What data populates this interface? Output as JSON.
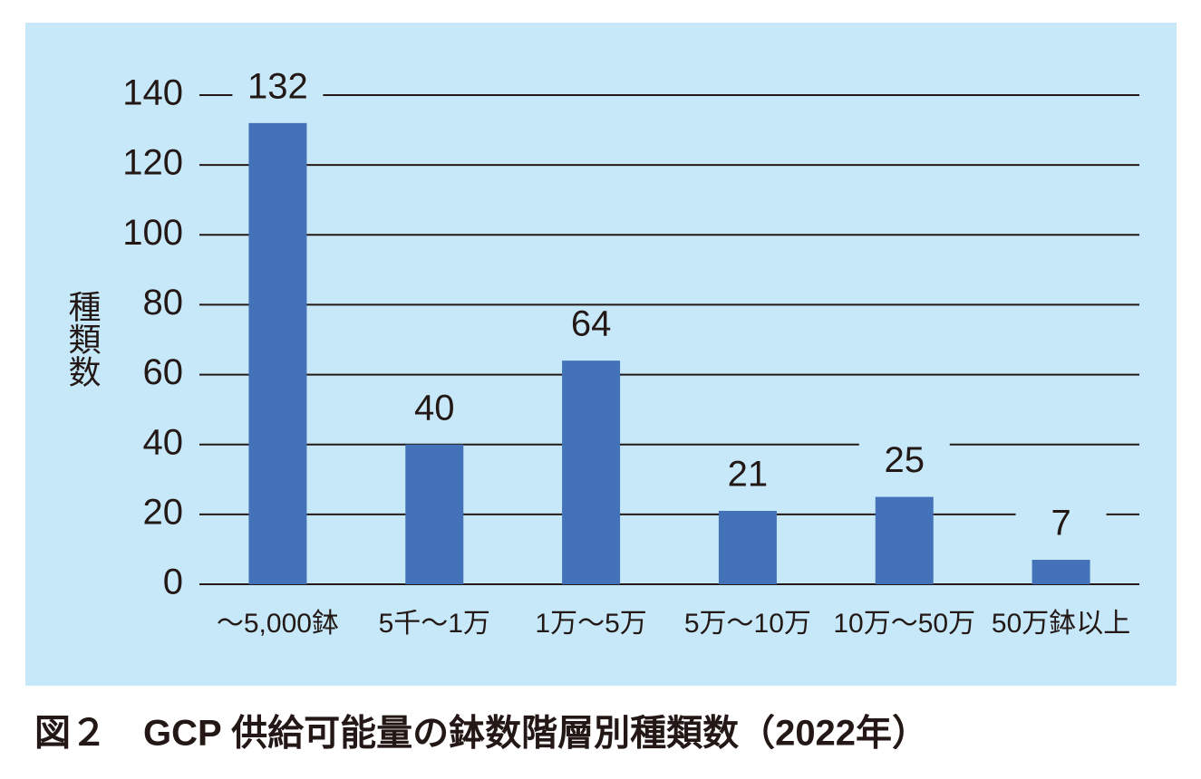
{
  "chart_data": {
    "type": "bar",
    "title": "図２　GCP 供給可能量の鉢数階層別種類数（2022年）",
    "y_label": "種類数",
    "categories": [
      "～5,000鉢",
      "5千～1万",
      "1万～5万",
      "5万～10万",
      "10万～50万",
      "50万鉢以上"
    ],
    "values": [
      132,
      40,
      64,
      21,
      25,
      7
    ],
    "color": "#4472b8",
    "ylim": [
      0,
      140
    ],
    "yticks": [
      0,
      20,
      40,
      60,
      80,
      100,
      120,
      140
    ],
    "grid": true
  }
}
